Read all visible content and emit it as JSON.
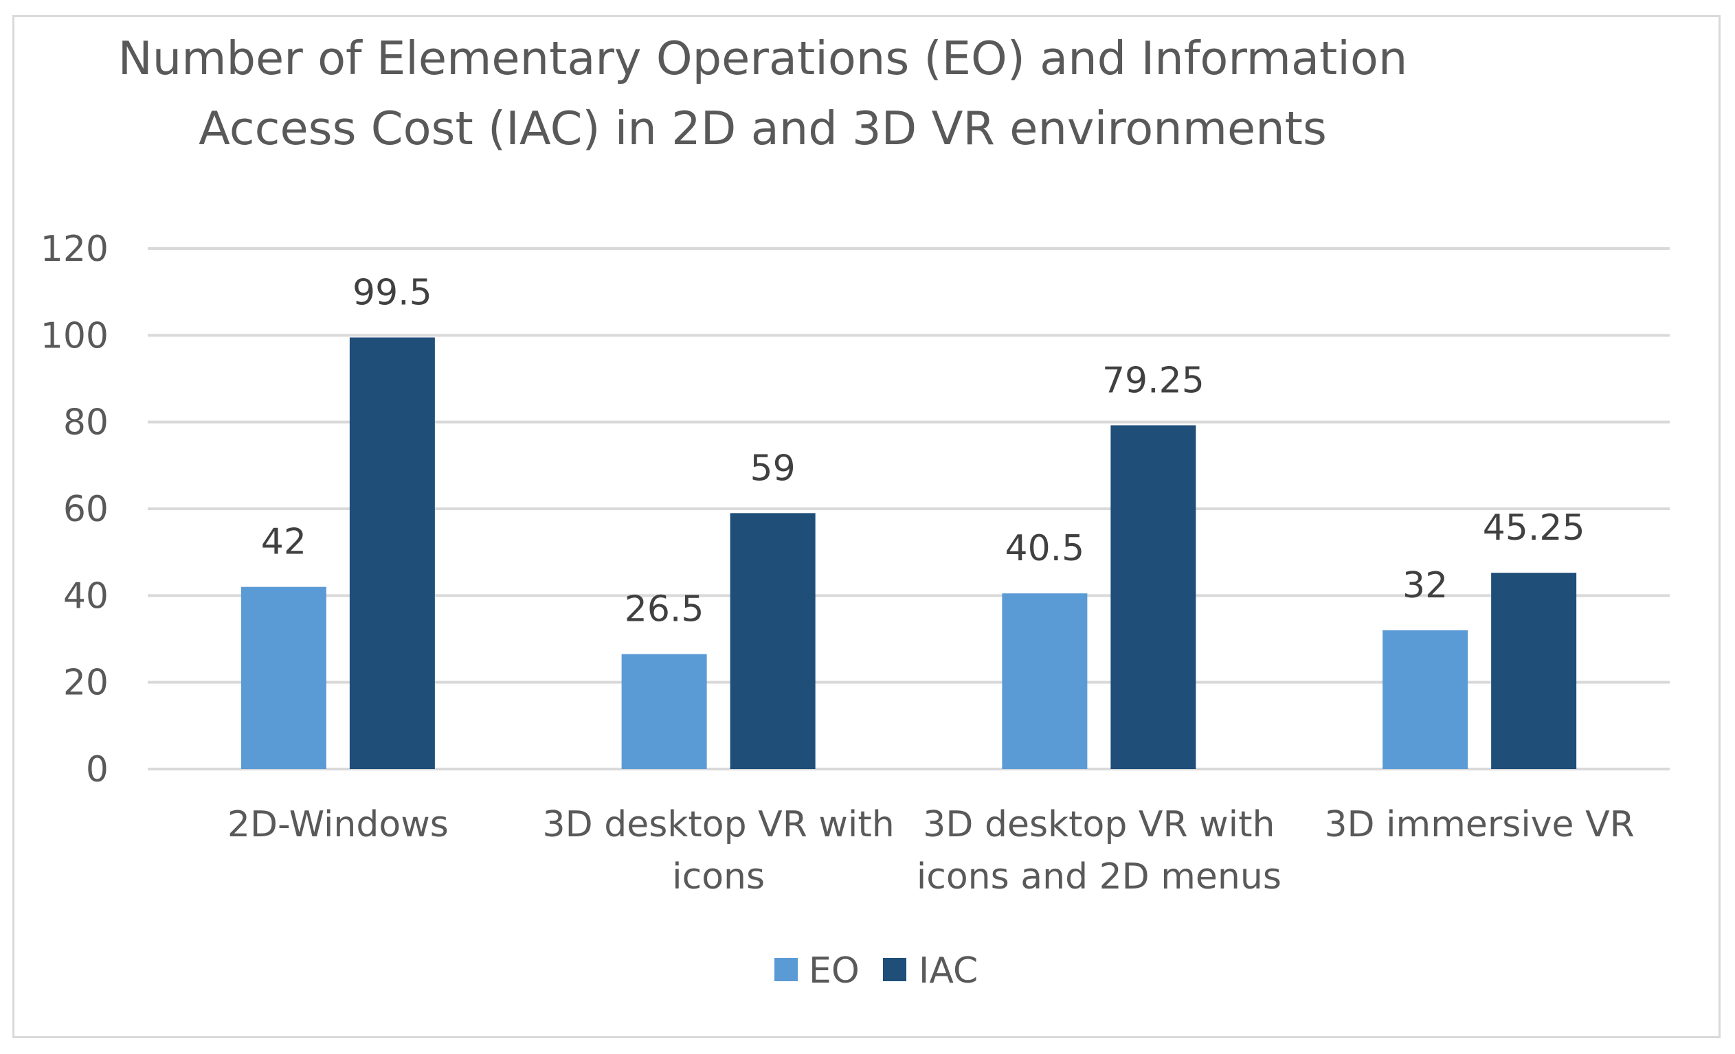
{
  "chart_data": {
    "type": "bar",
    "title": "Number of Elementary Operations (EO) and Information Access Cost (IAC) in 2D and 3D VR environments",
    "title_lines": [
      "Number of Elementary Operations (EO) and Information",
      "Access Cost (IAC) in 2D and 3D VR environments"
    ],
    "categories": [
      "2D-Windows",
      "3D desktop VR with icons",
      "3D desktop VR with icons and 2D menus",
      "3D immersive VR"
    ],
    "category_label_lines": [
      [
        "2D-Windows"
      ],
      [
        "3D desktop VR with",
        "icons"
      ],
      [
        "3D desktop VR with",
        "icons and 2D menus"
      ],
      [
        "3D immersive VR"
      ]
    ],
    "series": [
      {
        "name": "EO",
        "values": [
          42,
          26.5,
          40.5,
          32
        ],
        "labels": [
          "42",
          "26.5",
          "40.5",
          "32"
        ],
        "color": "#5b9bd5"
      },
      {
        "name": "IAC",
        "values": [
          99.5,
          59,
          79.25,
          45.25
        ],
        "labels": [
          "99.5",
          "59",
          "79.25",
          "45.25"
        ],
        "color": "#1f4e79"
      }
    ],
    "xlabel": "",
    "ylabel": "",
    "ylim": [
      0,
      120
    ],
    "yticks": [
      "0",
      "20",
      "40",
      "60",
      "80",
      "100",
      "120"
    ],
    "grid": true,
    "gridline_color": "#d9d9d9",
    "legend_position": "bottom"
  }
}
